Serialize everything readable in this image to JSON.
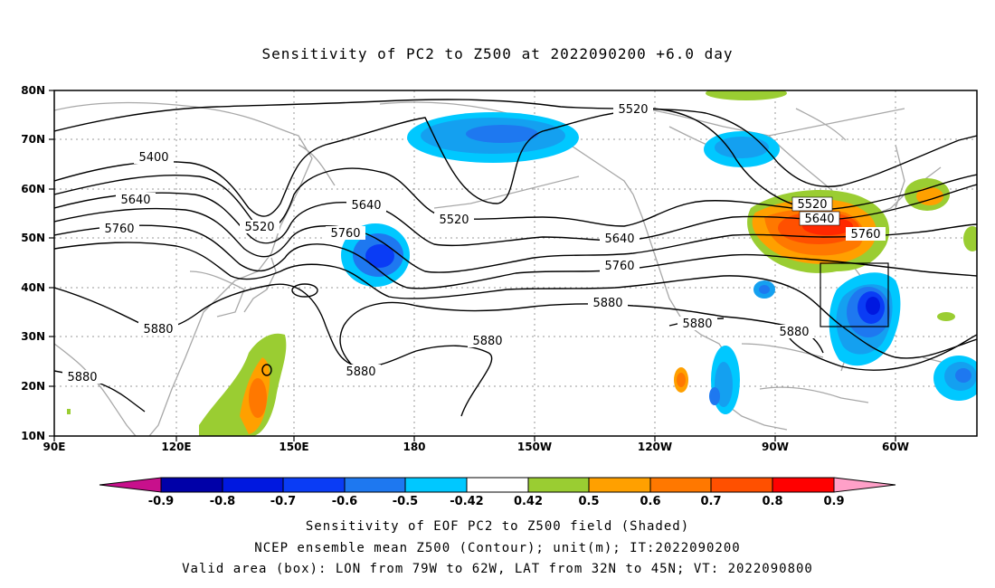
{
  "title": "Sensitivity of PC2 to Z500 at 2022090200 +6.0 day",
  "map": {
    "lat_labels": [
      "80N",
      "70N",
      "60N",
      "50N",
      "40N",
      "30N",
      "20N",
      "10N"
    ],
    "lon_labels": [
      "90E",
      "120E",
      "150E",
      "180",
      "150W",
      "120W",
      "90W",
      "60W"
    ],
    "contour_labels": [
      {
        "id": "c5520a",
        "text": "5520"
      },
      {
        "id": "c5400",
        "text": "5400"
      },
      {
        "id": "c5640a",
        "text": "5640"
      },
      {
        "id": "c5520b",
        "text": "5520"
      },
      {
        "id": "c5760a",
        "text": "5760"
      },
      {
        "id": "c5640b",
        "text": "5640"
      },
      {
        "id": "c5760b",
        "text": "5760"
      },
      {
        "id": "c5520c",
        "text": "5520"
      },
      {
        "id": "c5640c",
        "text": "5640"
      },
      {
        "id": "c5760c",
        "text": "5760"
      },
      {
        "id": "c5880a",
        "text": "5880"
      },
      {
        "id": "c5520d",
        "text": "5520"
      },
      {
        "id": "c5640d",
        "text": "5640"
      },
      {
        "id": "c5760d",
        "text": "5760"
      },
      {
        "id": "c5880b",
        "text": "5880"
      },
      {
        "id": "c5880c",
        "text": "5880"
      },
      {
        "id": "c5880d",
        "text": "5880"
      },
      {
        "id": "c5880e",
        "text": "5880"
      },
      {
        "id": "c5880f",
        "text": "5880"
      },
      {
        "id": "c5880g",
        "text": "5880"
      }
    ],
    "valid_box": {
      "lon_from": "79W",
      "lon_to": "62W",
      "lat_from": "32N",
      "lat_to": "45N"
    }
  },
  "colorbar": {
    "labels": [
      "-0.9",
      "-0.8",
      "-0.7",
      "-0.6",
      "-0.5",
      "-0.42",
      "0.42",
      "0.5",
      "0.6",
      "0.7",
      "0.8",
      "0.9"
    ],
    "colors": {
      "under": "#c8108c",
      "neg09": "#0000a8",
      "neg08": "#0018e0",
      "neg07": "#0a3cf5",
      "neg06": "#1e78f0",
      "neg05": "#14a0f0",
      "neg042": "#00c8ff",
      "white": "#ffffff",
      "pos042": "#9acd32",
      "pos05": "#ffa000",
      "pos06": "#ff7800",
      "pos07": "#ff5000",
      "pos08": "#ff2800",
      "pos09": "#ff0000",
      "over": "#ffa0c8"
    }
  },
  "captions": {
    "line1": "Sensitivity of EOF PC2 to Z500 field (Shaded)",
    "line2": "NCEP ensemble mean Z500 (Contour); unit(m); IT:2022090200",
    "line3": "Valid area (box): LON from 79W to 62W, LAT from 32N to 45N; VT: 2022090800"
  }
}
